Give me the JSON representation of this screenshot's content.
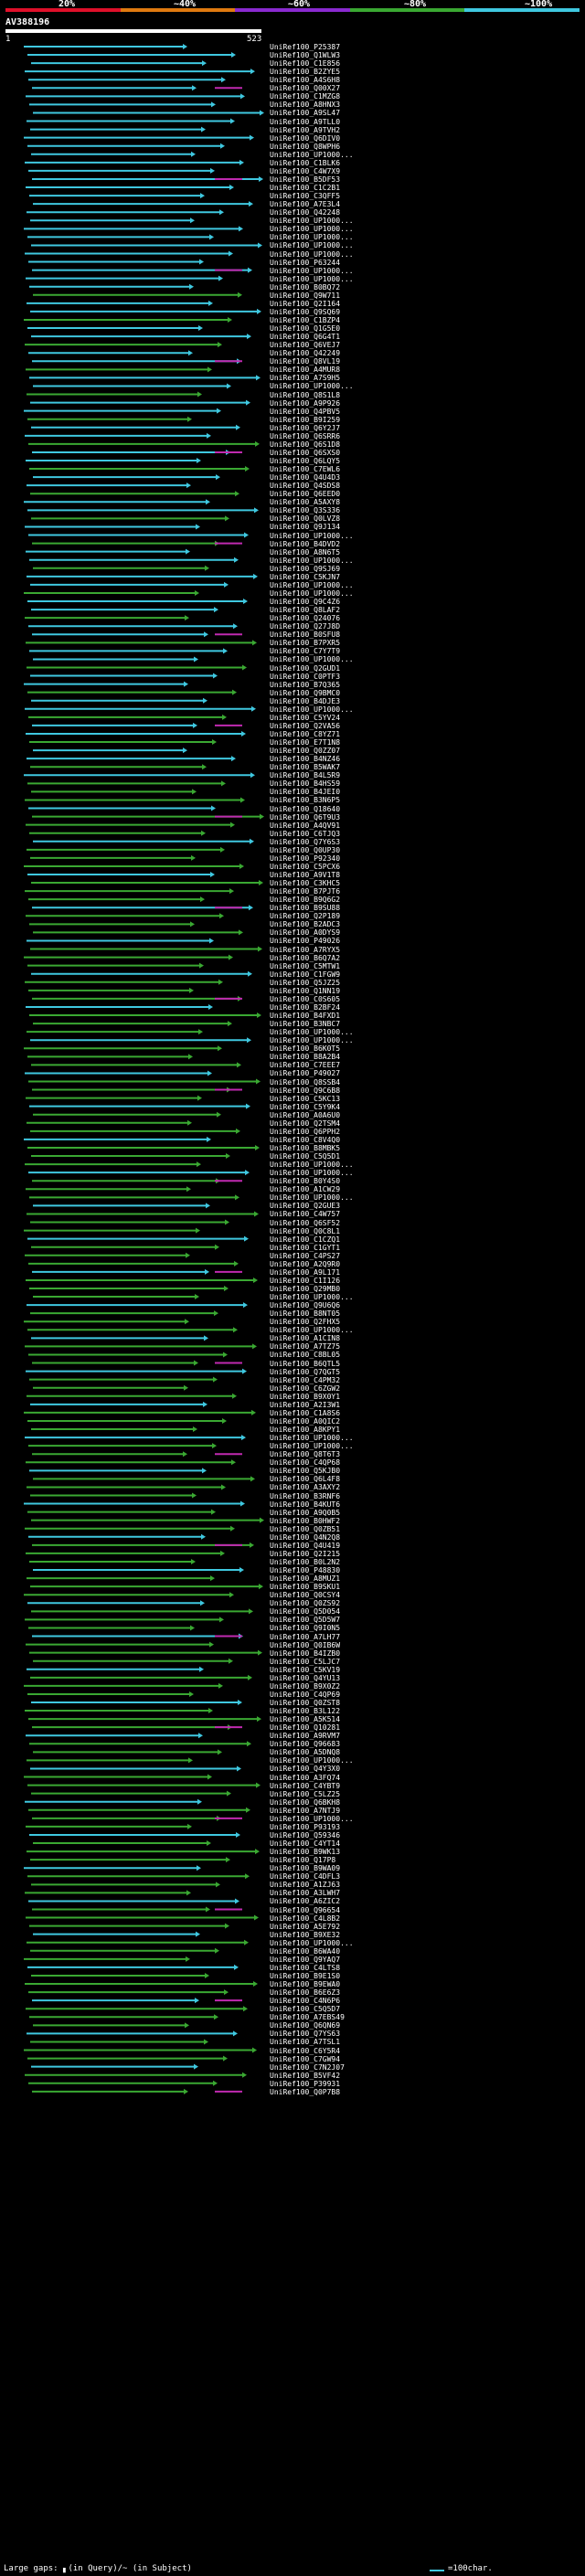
{
  "header": {
    "percent_labels": [
      "20%",
      "~40%",
      "~60%",
      "~80%",
      "~100%"
    ],
    "strip_colors": [
      "#e0102a",
      "#e07a10",
      "#8a2ad0",
      "#3aa832",
      "#3fc8e0"
    ],
    "query_name": "AV388196",
    "start_label": "1",
    "end_label": "523"
  },
  "hit_ids": [
    "UniRef100_P25387",
    "UniRef100_Q1WLW3",
    "UniRef100_C1E856",
    "UniRef100_B2ZYE5",
    "UniRef100_A4S6H8",
    "UniRef100_Q00X27",
    "UniRef100_C1MZG8",
    "UniRef100_A8HNX3",
    "UniRef100_A9SL47",
    "UniRef100_A9TLL0",
    "UniRef100_A9TVH2",
    "UniRef100_Q6DIV0",
    "UniRef100_Q8WPH6",
    "UniRef100_UP1000...",
    "UniRef100_C1BLK6",
    "UniRef100_C4W7X9",
    "UniRef100_B5DF53",
    "UniRef100_C1C2B1",
    "UniRef100_C3QFF5",
    "UniRef100_A7E3L4",
    "UniRef100_Q42248",
    "UniRef100_UP1000...",
    "UniRef100_UP1000...",
    "UniRef100_UP1000...",
    "UniRef100_UP1000...",
    "UniRef100_UP1000...",
    "UniRef100_P63244",
    "UniRef100_UP1000...",
    "UniRef100_UP1000...",
    "UniRef100_B0BQ72",
    "UniRef100_Q9W711",
    "UniRef100_Q2I164",
    "UniRef100_Q9SQ69",
    "UniRef100_C1BZP4",
    "UniRef100_Q1G5E0",
    "UniRef100_Q6G4T1",
    "UniRef100_Q6VEJ7",
    "UniRef100_Q42249",
    "UniRef100_Q8VL19",
    "UniRef100_A4MUR8",
    "UniRef100_A7S9H5",
    "UniRef100_UP1000...",
    "UniRef100_Q8S1L8",
    "UniRef100_A9P926",
    "UniRef100_Q4PBV5",
    "UniRef100_B9I259",
    "UniRef100_Q6Y2J7",
    "UniRef100_Q6SRR6",
    "UniRef100_Q6S1D8",
    "UniRef100_Q6SXS0",
    "UniRef100_Q6LQY5",
    "UniRef100_C7EWL6",
    "UniRef100_Q4U4D3",
    "UniRef100_Q4SDS8",
    "UniRef100_Q6EED0",
    "UniRef100_A5AXY8",
    "UniRef100_Q3S336",
    "UniRef100_Q0LVZ8",
    "UniRef100_Q9J134",
    "UniRef100_UP1000...",
    "UniRef100_B4DVD2",
    "UniRef100_A8N6T5",
    "UniRef100_UP1000...",
    "UniRef100_Q9SJ69",
    "UniRef100_C5KJN7",
    "UniRef100_UP1000...",
    "UniRef100_UP1000...",
    "UniRef100_Q9C4Z6",
    "UniRef100_Q8LAF2",
    "UniRef100_Q24076",
    "UniRef100_Q27J8D",
    "UniRef100_B0SFU8",
    "UniRef100_B7PXR5",
    "UniRef100_C7Y7T9",
    "UniRef100_UP1000...",
    "UniRef100_Q2GUD1",
    "UniRef100_C0PTF3",
    "UniRef100_B7Q365",
    "UniRef100_Q9BMC0",
    "UniRef100_B4DJE3",
    "UniRef100_UP1000...",
    "UniRef100_C5YV24",
    "UniRef100_Q2VA56",
    "UniRef100_C8YZ71",
    "UniRef100_E7T1N8",
    "UniRef100_Q0ZZ07",
    "UniRef100_B4NZ46",
    "UniRef100_B5WAK7",
    "UniRef100_B4L5R9",
    "UniRef100_B4HS59",
    "UniRef100_B4JEI0",
    "UniRef100_B3N6P5",
    "UniRef100_Q18640",
    "UniRef100_Q6T9U3",
    "UniRef100_A4QV91",
    "UniRef100_C6TJQ3",
    "UniRef100_Q7Y6S3",
    "UniRef100_Q0UP30",
    "UniRef100_P92340",
    "UniRef100_C5PCX6",
    "UniRef100_A9V1T8",
    "UniRef100_C3KHC5",
    "UniRef100_B7PJT6",
    "UniRef100_B9Q6G2",
    "UniRef100_B9SU88",
    "UniRef100_Q2P189",
    "UniRef100_B2ADC3",
    "UniRef100_A0DYS9",
    "UniRef100_P49026",
    "UniRef100_A7RYX5",
    "UniRef100_B6Q7A2",
    "UniRef100_C5MTW1",
    "UniRef100_C1FGW9",
    "UniRef100_Q5JZ25",
    "UniRef100_Q1NN19",
    "UniRef100_C0S605",
    "UniRef100_B2BF24",
    "UniRef100_B4FXD1",
    "UniRef100_B3NBC7",
    "UniRef100_UP1000...",
    "UniRef100_UP1000...",
    "UniRef100_B6K0T5",
    "UniRef100_B8A2B4",
    "UniRef100_C7EEE7",
    "UniRef100_P49027",
    "UniRef100_Q8SSB4",
    "UniRef100_Q9C6B8",
    "UniRef100_C5KC13",
    "UniRef100_C5Y9K4",
    "UniRef100_A0A6U0",
    "UniRef100_Q2TSM4",
    "UniRef100_Q6PPH2",
    "UniRef100_C8V4Q0",
    "UniRef100_B8MBK5",
    "UniRef100_C5Q5D1",
    "UniRef100_UP1000...",
    "UniRef100_UP1000...",
    "UniRef100_B0Y4S0",
    "UniRef100_A1CW29",
    "UniRef100_UP1000...",
    "UniRef100_Q2GUE3",
    "UniRef100_C4W757",
    "UniRef100_Q6SF52",
    "UniRef100_Q0C8L1",
    "UniRef100_C1CZQ1",
    "UniRef100_C1GYT1",
    "UniRef100_C4PS27",
    "UniRef100_A2Q9R0",
    "UniRef100_A9L171",
    "UniRef100_C1I126",
    "UniRef100_Q29MB0",
    "UniRef100_UP1000...",
    "UniRef100_Q9U6Q6",
    "UniRef100_B8NT05",
    "UniRef100_Q2FHX5",
    "UniRef100_UP1000...",
    "UniRef100_A1CIN8",
    "UniRef100_A7TZ75",
    "UniRef100_C8BL05",
    "UniRef100_B6QTL5",
    "UniRef100_Q7QGT5",
    "UniRef100_C4PM32",
    "UniRef100_C6ZGW2",
    "UniRef100_B9X0Y1",
    "UniRef100_A2I3W1",
    "UniRef100_C1A8S6",
    "UniRef100_A0QIC2",
    "UniRef100_A8KPY1",
    "UniRef100_UP1000...",
    "UniRef100_UP1000...",
    "UniRef100_Q8T6T3",
    "UniRef100_C4QP68",
    "UniRef100_Q5KJB0",
    "UniRef100_Q6L4F8",
    "UniRef100_A3AXY2",
    "UniRef100_B3RNF6",
    "UniRef100_B4KUT6",
    "UniRef100_A9Q0B5",
    "UniRef100_B0HWF2",
    "UniRef100_Q0ZB51",
    "UniRef100_Q4N2Q8",
    "UniRef100_Q4U419",
    "UniRef100_Q2I215",
    "UniRef100_B0L2N2",
    "UniRef100_P48830",
    "UniRef100_A8MUZ1",
    "UniRef100_B9SKU1",
    "UniRef100_Q0CSY4",
    "UniRef100_Q0ZS92",
    "UniRef100_Q5D054",
    "UniRef100_Q5D5W7",
    "UniRef100_Q9I0N5",
    "UniRef100_A7LH77",
    "UniRef100_Q0IB6W",
    "UniRef100_B4IZB0",
    "UniRef100_C5LJC7",
    "UniRef100_C5KV19",
    "UniRef100_Q4YU13",
    "UniRef100_B9X0Z2",
    "UniRef100_C4QP69",
    "UniRef100_Q0ZST8",
    "UniRef100_B3L122",
    "UniRef100_A5K514",
    "UniRef100_Q10281",
    "UniRef100_A9RVM7",
    "UniRef100_Q96683",
    "UniRef100_A5DNQ8",
    "UniRef100_UP1000...",
    "UniRef100_Q4Y3X0",
    "UniRef100_A3FQ74",
    "UniRef100_C4YBT9",
    "UniRef100_C5LZ25",
    "UniRef100_Q6BKH8",
    "UniRef100_A7NTJ9",
    "UniRef100_UP1000...",
    "UniRef100_P93193",
    "UniRef100_Q59346",
    "UniRef100_C4YT14",
    "UniRef100_B9WK13",
    "UniRef100_Q17P8",
    "UniRef100_B9WA09",
    "UniRef100_C4DFL3",
    "UniRef100_A1ZJ63",
    "UniRef100_A3LWH7",
    "UniRef100_A6ZIC2",
    "UniRef100_Q96654",
    "UniRef100_C4L8B2",
    "UniRef100_A5E792",
    "UniRef100_B9XE32",
    "UniRef100_UP1000...",
    "UniRef100_B6WA40",
    "UniRef100_Q9YAQ7",
    "UniRef100_C4LTS8",
    "UniRef100_B9E1S0",
    "UniRef100_B9EWA0",
    "UniRef100_B6E6Z3",
    "UniRef100_C4N6P6",
    "UniRef100_C5Q5D7",
    "UniRef100_A7EBS49",
    "UniRef100_Q6QN69",
    "UniRef100_Q7YS63",
    "UniRef100_A7TSL1",
    "UniRef100_C6Y5R4",
    "UniRef100_C7GW94",
    "UniRef100_C7N2J07",
    "UniRef100_B5VF42",
    "UniRef100_P39931",
    "UniRef100_Q0P7B8"
  ],
  "footer": {
    "gaps_label": "Large gaps: ▖(in Query)/~ (in Subject)",
    "scale_label": "=100char."
  }
}
